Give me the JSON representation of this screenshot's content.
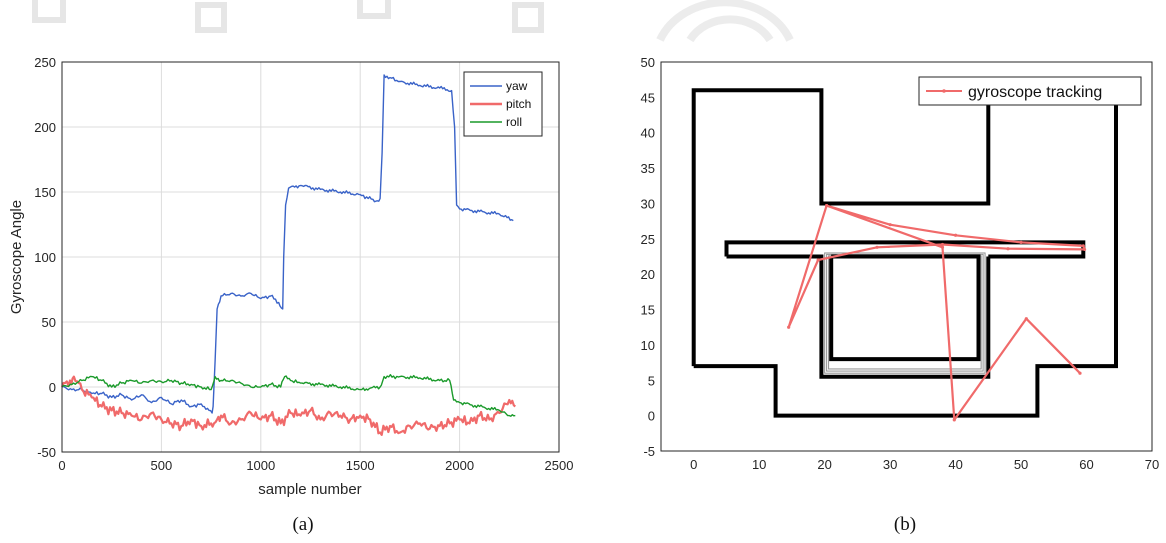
{
  "chart_data": [
    {
      "type": "line",
      "panel_label": "(a)",
      "xlabel": "sample number",
      "ylabel": "Gyroscope Angle",
      "xlim": [
        0,
        2500
      ],
      "ylim": [
        -50,
        250
      ],
      "xticks": [
        0,
        500,
        1000,
        1500,
        2000,
        2500
      ],
      "yticks": [
        -50,
        0,
        50,
        100,
        150,
        200,
        250
      ],
      "grid": true,
      "legend_position": "top-right",
      "series": [
        {
          "name": "yaw",
          "color": "#3a63c8",
          "x": [
            0,
            50,
            100,
            150,
            200,
            250,
            300,
            350,
            400,
            450,
            500,
            550,
            600,
            650,
            700,
            740,
            755,
            760,
            770,
            780,
            800,
            850,
            900,
            950,
            1000,
            1050,
            1090,
            1110,
            1115,
            1125,
            1140,
            1200,
            1300,
            1400,
            1500,
            1580,
            1600,
            1610,
            1620,
            1650,
            1700,
            1800,
            1900,
            1960,
            1975,
            1985,
            2000,
            2100,
            2200,
            2270
          ],
          "y": [
            0,
            -2,
            -2,
            -5,
            -5,
            -8,
            -6,
            -10,
            -6,
            -12,
            -8,
            -13,
            -10,
            -15,
            -13,
            -18,
            -20,
            -15,
            20,
            60,
            70,
            72,
            70,
            72,
            68,
            70,
            65,
            60,
            100,
            140,
            153,
            155,
            152,
            150,
            148,
            143,
            145,
            180,
            240,
            238,
            235,
            232,
            230,
            228,
            200,
            140,
            137,
            135,
            133,
            128
          ]
        },
        {
          "name": "pitch",
          "color": "#f06a6a",
          "x": [
            0,
            40,
            60,
            100,
            150,
            200,
            250,
            300,
            350,
            400,
            450,
            500,
            550,
            600,
            650,
            700,
            750,
            780,
            800,
            850,
            900,
            950,
            1000,
            1050,
            1100,
            1150,
            1200,
            1250,
            1300,
            1350,
            1400,
            1450,
            1500,
            1550,
            1600,
            1650,
            1700,
            1750,
            1800,
            1850,
            1900,
            1950,
            2000,
            2050,
            2100,
            2150,
            2200,
            2250,
            2280
          ],
          "y": [
            0,
            5,
            8,
            -2,
            -8,
            -15,
            -18,
            -20,
            -22,
            -25,
            -20,
            -25,
            -28,
            -30,
            -25,
            -30,
            -28,
            -25,
            -22,
            -28,
            -25,
            -20,
            -25,
            -22,
            -28,
            -20,
            -22,
            -18,
            -25,
            -20,
            -22,
            -25,
            -22,
            -25,
            -35,
            -30,
            -35,
            -30,
            -28,
            -32,
            -30,
            -28,
            -25,
            -28,
            -22,
            -25,
            -20,
            -10,
            -15
          ]
        },
        {
          "name": "roll",
          "color": "#1a9a2a",
          "x": [
            0,
            50,
            100,
            150,
            200,
            250,
            300,
            350,
            400,
            450,
            500,
            550,
            600,
            650,
            700,
            750,
            770,
            800,
            850,
            900,
            950,
            1000,
            1050,
            1100,
            1120,
            1150,
            1200,
            1300,
            1400,
            1500,
            1600,
            1620,
            1700,
            1800,
            1900,
            1950,
            1970,
            2000,
            2100,
            2200,
            2250,
            2280
          ],
          "y": [
            0,
            2,
            5,
            8,
            5,
            0,
            3,
            5,
            3,
            5,
            4,
            5,
            3,
            2,
            0,
            -2,
            8,
            5,
            5,
            3,
            0,
            0,
            2,
            0,
            8,
            5,
            3,
            2,
            0,
            -2,
            0,
            8,
            8,
            7,
            5,
            5,
            -10,
            -12,
            -15,
            -18,
            -22,
            -22
          ]
        }
      ]
    },
    {
      "type": "line",
      "panel_label": "(b)",
      "xlim": [
        -5,
        70
      ],
      "ylim": [
        -5,
        50
      ],
      "xticks": [
        0,
        10,
        20,
        30,
        40,
        50,
        60,
        70
      ],
      "yticks": [
        -5,
        0,
        5,
        10,
        15,
        20,
        25,
        30,
        35,
        40,
        45,
        50
      ],
      "grid": false,
      "legend_position": "top-right",
      "floor_plan": {
        "outer": [
          [
            0,
            46
          ],
          [
            0,
            7
          ],
          [
            6,
            7
          ],
          [
            6,
            0
          ],
          [
            12.5,
            0
          ],
          [
            12.5,
            -0.5
          ],
          [
            20,
            -0.5
          ]
        ],
        "black_wall_color": "#000000",
        "grey_wall_color": "#909090",
        "walls": [
          [
            [
              0,
              7
            ],
            [
              0,
              46
            ],
            [
              19.5,
              46
            ],
            [
              19.5,
              30
            ],
            [
              45,
              30
            ],
            [
              45,
              46
            ]
          ],
          [
            [
              64.5,
              46
            ],
            [
              64.5,
              7
            ],
            [
              52.5,
              7
            ],
            [
              52.5,
              0
            ],
            [
              12.5,
              0
            ],
            [
              12.5,
              7
            ],
            [
              0,
              7
            ]
          ],
          [
            [
              5,
              22.5
            ],
            [
              5,
              24.5
            ],
            [
              59.5,
              24.5
            ],
            [
              59.5,
              22.5
            ],
            [
              45,
              22.5
            ]
          ],
          [
            [
              5,
              22.5
            ],
            [
              19.5,
              22.5
            ],
            [
              19.5,
              5.5
            ],
            [
              45,
              5.5
            ],
            [
              45,
              22.5
            ]
          ],
          [
            [
              21,
              22.5
            ],
            [
              43.5,
              22.5
            ],
            [
              43.5,
              8
            ],
            [
              21,
              8
            ],
            [
              21,
              22.5
            ]
          ]
        ],
        "grey_rects": [
          [
            20,
            6,
            44.5,
            23
          ],
          [
            20.3,
            6.3,
            44.2,
            22.8
          ],
          [
            20.6,
            6.6,
            43.9,
            22.6
          ]
        ]
      },
      "series": [
        {
          "name": "gyroscope tracking",
          "color": "#f06a6a",
          "x": [
            20.3,
            30,
            40,
            50,
            59.5,
            59.7,
            48,
            38,
            28,
            19,
            14.5,
            20.3,
            38,
            39.8,
            50.8,
            59
          ],
          "y": [
            29.7,
            27,
            25.5,
            24.5,
            24,
            23.5,
            23.6,
            24.2,
            23.8,
            22,
            12.5,
            29.7,
            23.8,
            -0.6,
            13.7,
            6
          ]
        }
      ]
    }
  ]
}
